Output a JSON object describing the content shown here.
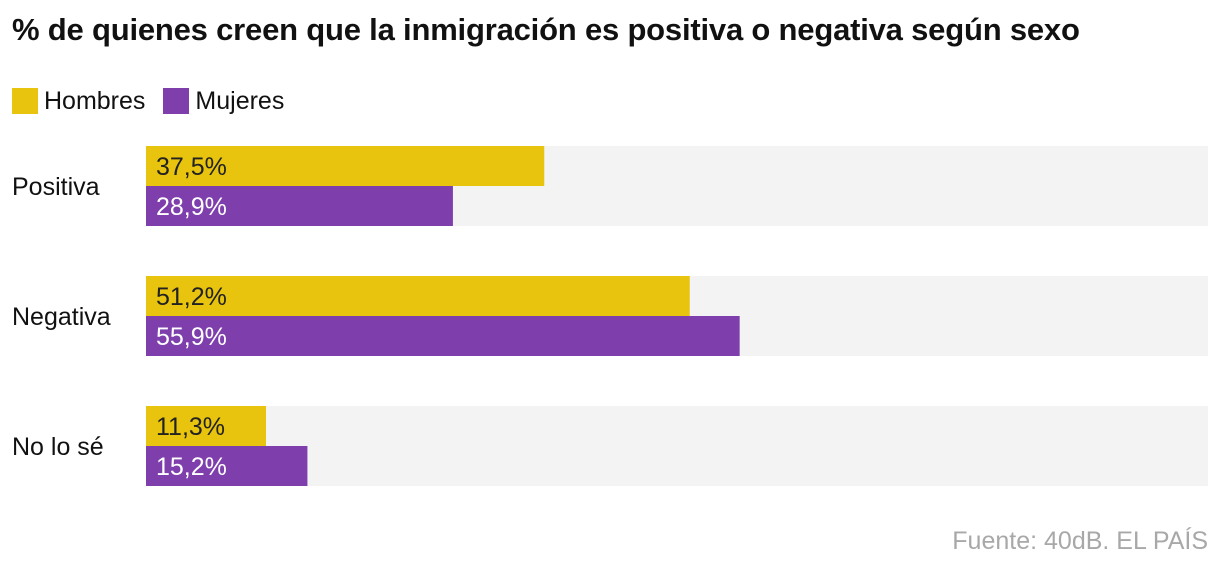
{
  "title": "% de quienes creen que la inmigración es positiva o negativa según sexo",
  "legend": [
    {
      "label": "Hombres",
      "color": "#E8C40E"
    },
    {
      "label": "Mujeres",
      "color": "#7E3FAD"
    }
  ],
  "source": "Fuente: 40dB. EL PAÍS",
  "chart_data": {
    "type": "bar",
    "orientation": "horizontal",
    "categories": [
      "Positiva",
      "Negativa",
      "No lo sé"
    ],
    "series": [
      {
        "name": "Hombres",
        "values": [
          37.5,
          51.2,
          11.3
        ],
        "labels": [
          "37,5%",
          "51,2%",
          "11,3%"
        ],
        "color": "#E8C40E"
      },
      {
        "name": "Mujeres",
        "values": [
          28.9,
          55.9,
          15.2
        ],
        "labels": [
          "28,9%",
          "55,9%",
          "15,2%"
        ],
        "color": "#7E3FAD"
      }
    ],
    "xlim": [
      0,
      100
    ],
    "background_track_color": "#F3F3F3",
    "grid": false,
    "legend_position": "top-left"
  }
}
